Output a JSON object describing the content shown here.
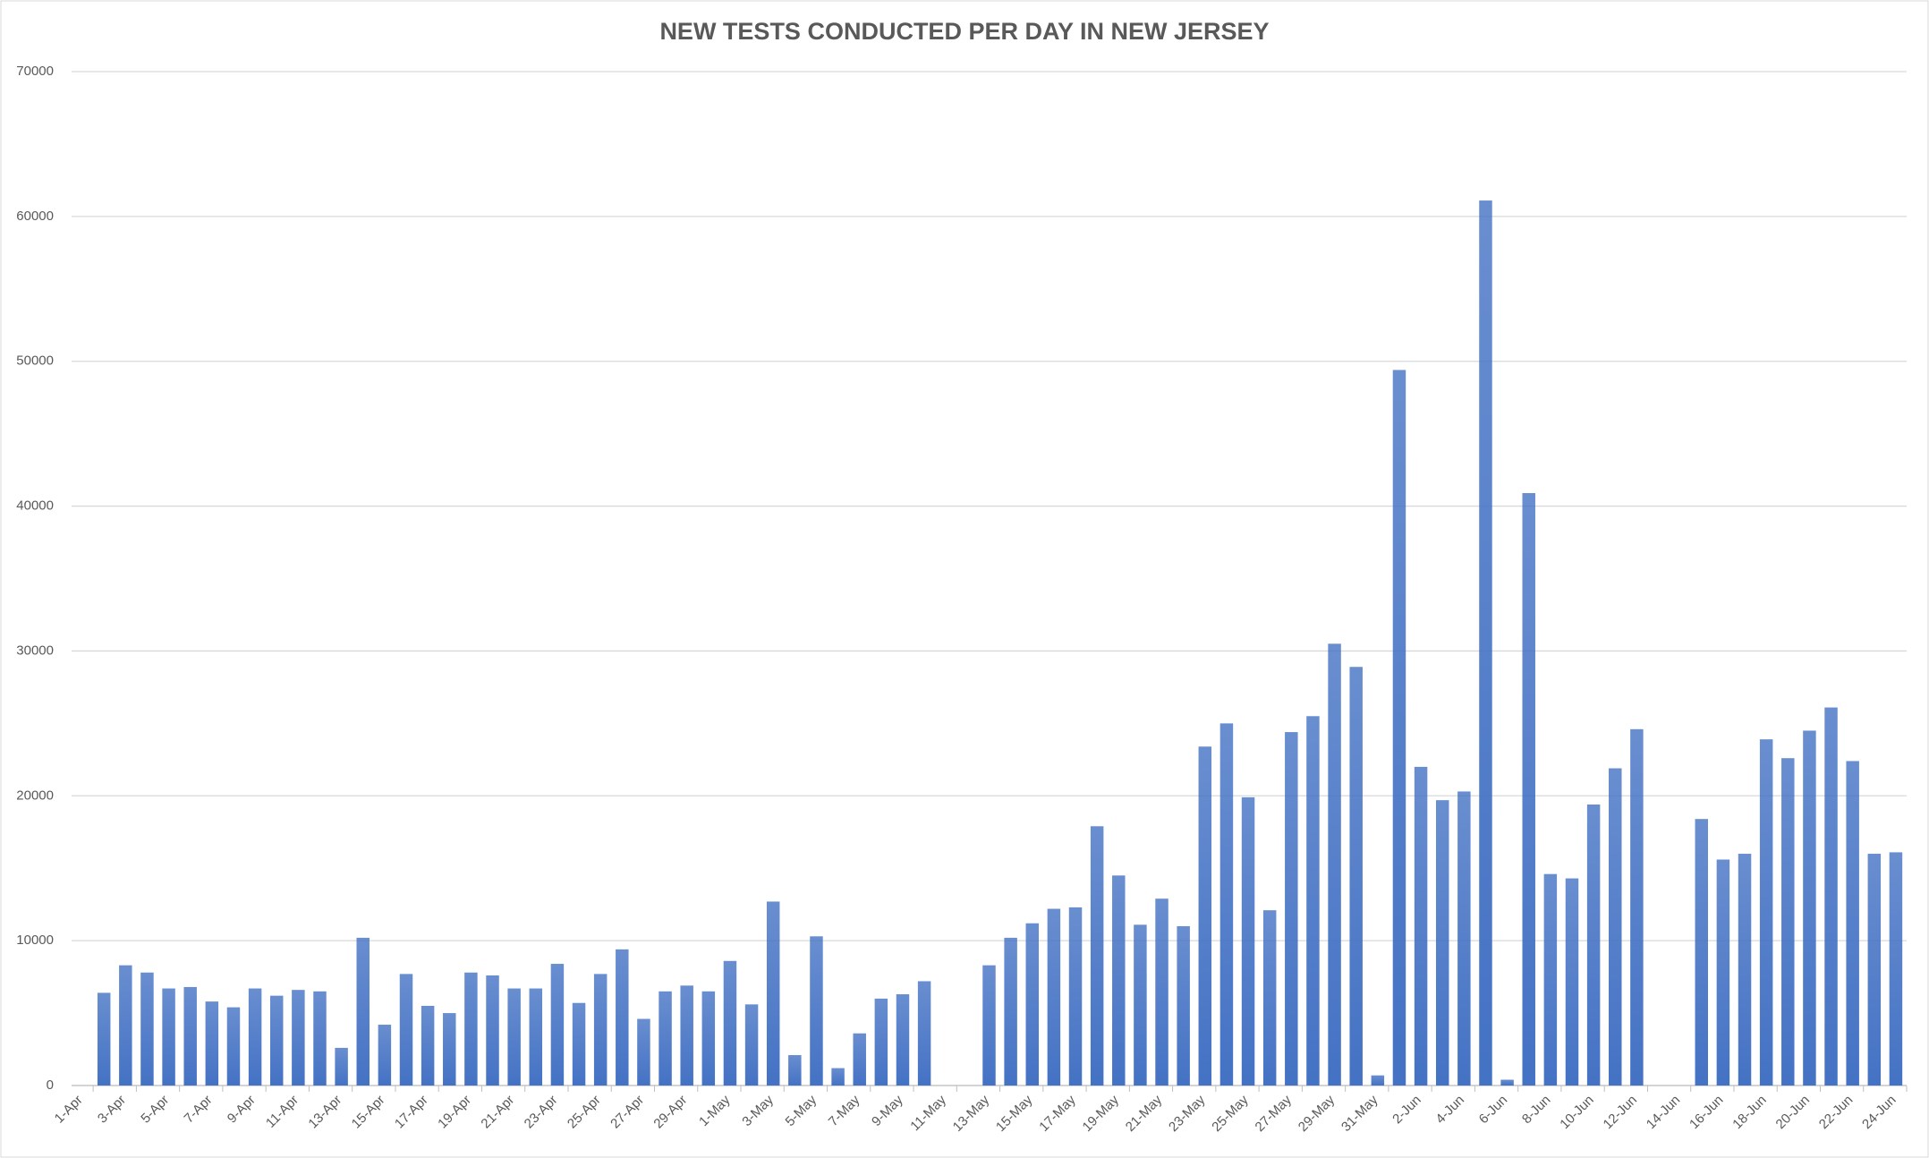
{
  "chart_data": {
    "type": "bar",
    "title": "NEW TESTS CONDUCTED PER DAY IN NEW JERSEY",
    "categories": [
      "1-Apr",
      null,
      "3-Apr",
      null,
      "5-Apr",
      null,
      "7-Apr",
      null,
      "9-Apr",
      null,
      "11-Apr",
      null,
      "13-Apr",
      null,
      "15-Apr",
      null,
      "17-Apr",
      null,
      "19-Apr",
      null,
      "21-Apr",
      null,
      "23-Apr",
      null,
      "25-Apr",
      null,
      "27-Apr",
      null,
      "29-Apr",
      null,
      "1-May",
      null,
      "3-May",
      null,
      "5-May",
      null,
      "7-May",
      null,
      "9-May",
      null,
      "11-May",
      null,
      "13-May",
      null,
      "15-May",
      null,
      "17-May",
      null,
      "19-May",
      null,
      "21-May",
      null,
      "23-May",
      null,
      "25-May",
      null,
      "27-May",
      null,
      "29-May",
      null,
      "31-May",
      null,
      "2-Jun",
      null,
      "4-Jun",
      null,
      "6-Jun",
      null,
      "8-Jun",
      null,
      "10-Jun",
      null,
      "12-Jun",
      null,
      "14-Jun",
      null,
      "16-Jun",
      null,
      "18-Jun",
      null,
      "20-Jun",
      null,
      "22-Jun",
      null,
      "24-Jun"
    ],
    "values": [
      null,
      6400,
      8300,
      7800,
      6700,
      6800,
      5800,
      5400,
      6700,
      6200,
      6600,
      6500,
      2600,
      10200,
      4200,
      7700,
      5500,
      5000,
      7800,
      7600,
      6700,
      6700,
      8400,
      5700,
      7700,
      9400,
      4600,
      6500,
      6900,
      6500,
      8600,
      5600,
      12700,
      2100,
      10300,
      1200,
      3600,
      6000,
      6300,
      7200,
      null,
      null,
      8300,
      10200,
      11200,
      12200,
      12300,
      17900,
      14500,
      11100,
      12900,
      11000,
      23400,
      25000,
      19900,
      12100,
      24400,
      25500,
      30500,
      28900,
      700,
      49400,
      22000,
      19700,
      20300,
      61100,
      400,
      40900,
      14600,
      14300,
      19400,
      21900,
      24600,
      null,
      null,
      18400,
      15600,
      16000,
      23900,
      22600,
      24500,
      26100,
      22400,
      16000,
      16100
    ],
    "color": "#4472c4",
    "ylim": [
      0,
      70000
    ],
    "yticks": [
      0,
      10000,
      20000,
      30000,
      40000,
      50000,
      60000,
      70000
    ],
    "grid": true
  }
}
